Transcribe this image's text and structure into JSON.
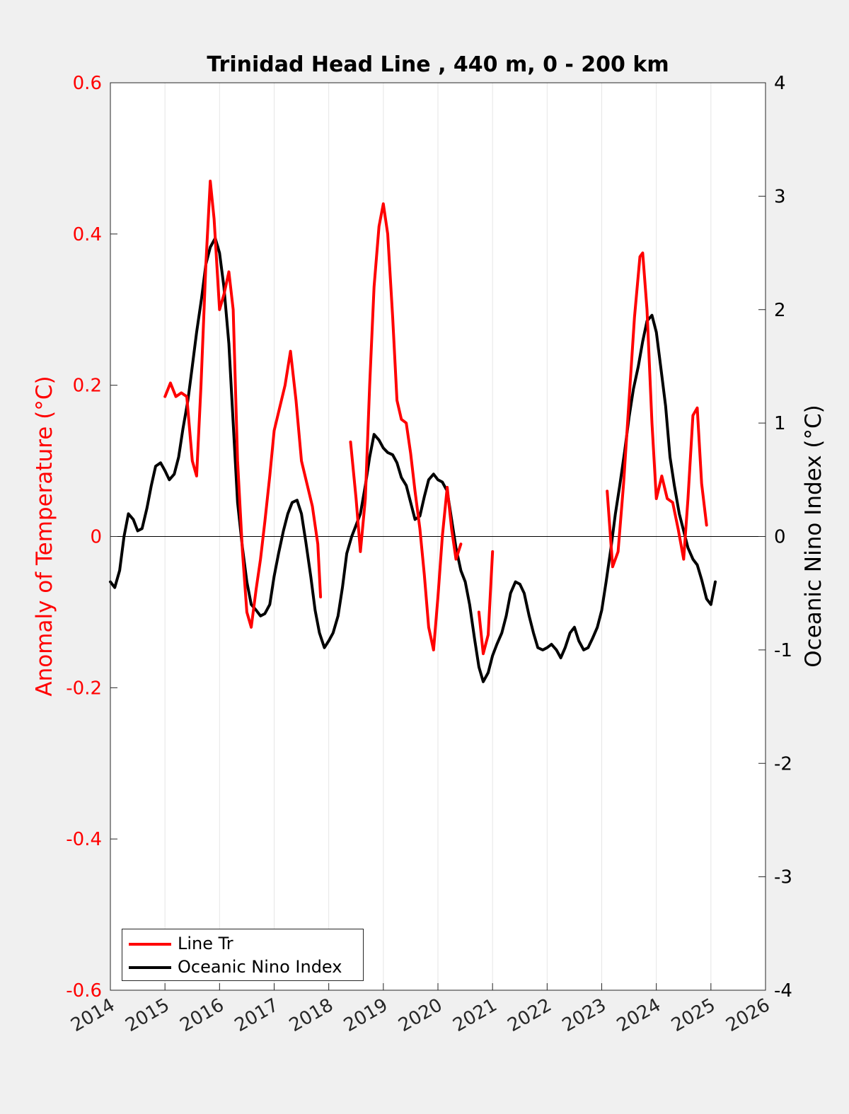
{
  "chart_data": {
    "type": "line",
    "title": "Trinidad Head Line , 440 m, 0 - 200 km",
    "ylabel_left": "Anomaly of Temperature (°C)",
    "ylabel_right": "Oceanic Nino Index (°C)",
    "xlabel": "",
    "xlim": [
      2014,
      2026
    ],
    "ylim_left": [
      -0.6,
      0.6
    ],
    "ylim_right": [
      -4,
      4
    ],
    "x_ticks": [
      "2014",
      "2015",
      "2016",
      "2017",
      "2018",
      "2019",
      "2020",
      "2021",
      "2022",
      "2023",
      "2024",
      "2025",
      "2026"
    ],
    "y_left_ticks": [
      "-0.6",
      "-0.4",
      "-0.2",
      "0",
      "0.2",
      "0.4",
      "0.6"
    ],
    "y_right_ticks": [
      "-4",
      "-3",
      "-2",
      "-1",
      "0",
      "1",
      "2",
      "3",
      "4"
    ],
    "grid": "vertical",
    "legend_position": "bottom-left",
    "colors": {
      "line_tr": "#ff0000",
      "oni": "#000000",
      "left_axis": "#ff0000",
      "right_axis": "#000000"
    },
    "series": [
      {
        "name": "Line Tr",
        "axis": "left",
        "segments": [
          [
            [
              2015.0,
              0.185
            ],
            [
              2015.1,
              0.203
            ],
            [
              2015.2,
              0.185
            ],
            [
              2015.3,
              0.19
            ],
            [
              2015.4,
              0.185
            ],
            [
              2015.5,
              0.1
            ],
            [
              2015.58,
              0.08
            ],
            [
              2015.66,
              0.2
            ],
            [
              2015.75,
              0.36
            ],
            [
              2015.83,
              0.47
            ],
            [
              2015.9,
              0.42
            ],
            [
              2016.0,
              0.3
            ],
            [
              2016.08,
              0.32
            ],
            [
              2016.17,
              0.35
            ],
            [
              2016.25,
              0.3
            ],
            [
              2016.33,
              0.1
            ],
            [
              2016.42,
              -0.02
            ],
            [
              2016.5,
              -0.1
            ],
            [
              2016.58,
              -0.12
            ],
            [
              2016.67,
              -0.07
            ],
            [
              2016.75,
              -0.03
            ],
            [
              2016.83,
              0.02
            ],
            [
              2016.92,
              0.08
            ],
            [
              2017.0,
              0.14
            ],
            [
              2017.1,
              0.17
            ],
            [
              2017.2,
              0.2
            ],
            [
              2017.3,
              0.245
            ],
            [
              2017.4,
              0.18
            ],
            [
              2017.5,
              0.1
            ],
            [
              2017.6,
              0.07
            ],
            [
              2017.7,
              0.04
            ],
            [
              2017.8,
              -0.01
            ],
            [
              2017.85,
              -0.08
            ]
          ],
          [
            [
              2018.4,
              0.125
            ],
            [
              2018.5,
              0.05
            ],
            [
              2018.58,
              -0.02
            ],
            [
              2018.67,
              0.05
            ],
            [
              2018.75,
              0.2
            ],
            [
              2018.83,
              0.33
            ],
            [
              2018.92,
              0.41
            ],
            [
              2019.0,
              0.44
            ],
            [
              2019.08,
              0.4
            ],
            [
              2019.17,
              0.29
            ],
            [
              2019.25,
              0.18
            ],
            [
              2019.33,
              0.155
            ],
            [
              2019.42,
              0.15
            ],
            [
              2019.5,
              0.11
            ],
            [
              2019.58,
              0.06
            ],
            [
              2019.67,
              0.01
            ],
            [
              2019.75,
              -0.05
            ],
            [
              2019.83,
              -0.12
            ],
            [
              2019.92,
              -0.15
            ],
            [
              2020.0,
              -0.08
            ],
            [
              2020.08,
              0.0
            ],
            [
              2020.17,
              0.065
            ],
            [
              2020.25,
              0.01
            ],
            [
              2020.33,
              -0.03
            ],
            [
              2020.42,
              -0.01
            ]
          ],
          [
            [
              2020.75,
              -0.1
            ],
            [
              2020.83,
              -0.155
            ],
            [
              2020.92,
              -0.13
            ],
            [
              2021.0,
              -0.02
            ]
          ],
          [
            [
              2023.1,
              0.06
            ],
            [
              2023.2,
              -0.04
            ],
            [
              2023.3,
              -0.02
            ],
            [
              2023.4,
              0.07
            ],
            [
              2023.5,
              0.18
            ],
            [
              2023.6,
              0.29
            ],
            [
              2023.7,
              0.37
            ],
            [
              2023.75,
              0.375
            ],
            [
              2023.83,
              0.3
            ],
            [
              2023.92,
              0.15
            ],
            [
              2024.0,
              0.05
            ],
            [
              2024.1,
              0.08
            ],
            [
              2024.2,
              0.05
            ],
            [
              2024.3,
              0.045
            ],
            [
              2024.4,
              0.01
            ],
            [
              2024.5,
              -0.03
            ],
            [
              2024.58,
              0.05
            ],
            [
              2024.67,
              0.16
            ],
            [
              2024.75,
              0.17
            ],
            [
              2024.83,
              0.07
            ],
            [
              2024.92,
              0.015
            ]
          ]
        ]
      },
      {
        "name": "Oceanic Nino Index",
        "axis": "right",
        "segments": [
          [
            [
              2014.0,
              -0.4
            ],
            [
              2014.08,
              -0.45
            ],
            [
              2014.17,
              -0.3
            ],
            [
              2014.25,
              0.0
            ],
            [
              2014.33,
              0.2
            ],
            [
              2014.42,
              0.15
            ],
            [
              2014.5,
              0.05
            ],
            [
              2014.58,
              0.07
            ],
            [
              2014.67,
              0.25
            ],
            [
              2014.75,
              0.45
            ],
            [
              2014.83,
              0.62
            ],
            [
              2014.92,
              0.65
            ],
            [
              2015.0,
              0.58
            ],
            [
              2015.08,
              0.5
            ],
            [
              2015.17,
              0.55
            ],
            [
              2015.25,
              0.7
            ],
            [
              2015.33,
              0.95
            ],
            [
              2015.42,
              1.2
            ],
            [
              2015.5,
              1.5
            ],
            [
              2015.58,
              1.8
            ],
            [
              2015.67,
              2.1
            ],
            [
              2015.75,
              2.4
            ],
            [
              2015.83,
              2.55
            ],
            [
              2015.92,
              2.63
            ],
            [
              2016.0,
              2.5
            ],
            [
              2016.08,
              2.2
            ],
            [
              2016.17,
              1.7
            ],
            [
              2016.25,
              1.0
            ],
            [
              2016.33,
              0.3
            ],
            [
              2016.42,
              -0.1
            ],
            [
              2016.5,
              -0.4
            ],
            [
              2016.58,
              -0.6
            ],
            [
              2016.67,
              -0.65
            ],
            [
              2016.75,
              -0.7
            ],
            [
              2016.83,
              -0.68
            ],
            [
              2016.92,
              -0.6
            ],
            [
              2017.0,
              -0.35
            ],
            [
              2017.08,
              -0.15
            ],
            [
              2017.17,
              0.05
            ],
            [
              2017.25,
              0.2
            ],
            [
              2017.33,
              0.3
            ],
            [
              2017.42,
              0.32
            ],
            [
              2017.5,
              0.2
            ],
            [
              2017.58,
              -0.05
            ],
            [
              2017.67,
              -0.35
            ],
            [
              2017.75,
              -0.65
            ],
            [
              2017.83,
              -0.85
            ],
            [
              2017.92,
              -0.98
            ],
            [
              2018.0,
              -0.92
            ],
            [
              2018.08,
              -0.85
            ],
            [
              2018.17,
              -0.7
            ],
            [
              2018.25,
              -0.45
            ],
            [
              2018.33,
              -0.15
            ],
            [
              2018.42,
              0.0
            ],
            [
              2018.5,
              0.1
            ],
            [
              2018.58,
              0.2
            ],
            [
              2018.67,
              0.45
            ],
            [
              2018.75,
              0.7
            ],
            [
              2018.83,
              0.9
            ],
            [
              2018.92,
              0.85
            ],
            [
              2019.0,
              0.78
            ],
            [
              2019.08,
              0.74
            ],
            [
              2019.17,
              0.72
            ],
            [
              2019.25,
              0.65
            ],
            [
              2019.33,
              0.52
            ],
            [
              2019.42,
              0.45
            ],
            [
              2019.5,
              0.3
            ],
            [
              2019.58,
              0.15
            ],
            [
              2019.67,
              0.18
            ],
            [
              2019.75,
              0.35
            ],
            [
              2019.83,
              0.5
            ],
            [
              2019.92,
              0.55
            ],
            [
              2020.0,
              0.5
            ],
            [
              2020.08,
              0.48
            ],
            [
              2020.17,
              0.4
            ],
            [
              2020.25,
              0.15
            ],
            [
              2020.33,
              -0.1
            ],
            [
              2020.42,
              -0.3
            ],
            [
              2020.5,
              -0.4
            ],
            [
              2020.58,
              -0.6
            ],
            [
              2020.67,
              -0.9
            ],
            [
              2020.75,
              -1.15
            ],
            [
              2020.83,
              -1.28
            ],
            [
              2020.92,
              -1.2
            ],
            [
              2021.0,
              -1.05
            ],
            [
              2021.08,
              -0.95
            ],
            [
              2021.17,
              -0.85
            ],
            [
              2021.25,
              -0.7
            ],
            [
              2021.33,
              -0.5
            ],
            [
              2021.42,
              -0.4
            ],
            [
              2021.5,
              -0.42
            ],
            [
              2021.58,
              -0.5
            ],
            [
              2021.67,
              -0.7
            ],
            [
              2021.75,
              -0.85
            ],
            [
              2021.83,
              -0.98
            ],
            [
              2021.92,
              -1.0
            ],
            [
              2022.0,
              -0.98
            ],
            [
              2022.08,
              -0.95
            ],
            [
              2022.17,
              -1.0
            ],
            [
              2022.25,
              -1.07
            ],
            [
              2022.33,
              -0.98
            ],
            [
              2022.42,
              -0.85
            ],
            [
              2022.5,
              -0.8
            ],
            [
              2022.58,
              -0.92
            ],
            [
              2022.67,
              -1.0
            ],
            [
              2022.75,
              -0.98
            ],
            [
              2022.83,
              -0.9
            ],
            [
              2022.92,
              -0.8
            ],
            [
              2023.0,
              -0.65
            ],
            [
              2023.08,
              -0.4
            ],
            [
              2023.17,
              -0.1
            ],
            [
              2023.25,
              0.2
            ],
            [
              2023.33,
              0.45
            ],
            [
              2023.42,
              0.75
            ],
            [
              2023.5,
              1.05
            ],
            [
              2023.58,
              1.3
            ],
            [
              2023.67,
              1.5
            ],
            [
              2023.75,
              1.72
            ],
            [
              2023.83,
              1.9
            ],
            [
              2023.92,
              1.95
            ],
            [
              2024.0,
              1.8
            ],
            [
              2024.08,
              1.5
            ],
            [
              2024.17,
              1.15
            ],
            [
              2024.25,
              0.7
            ],
            [
              2024.33,
              0.45
            ],
            [
              2024.42,
              0.2
            ],
            [
              2024.5,
              0.05
            ],
            [
              2024.58,
              -0.1
            ],
            [
              2024.67,
              -0.2
            ],
            [
              2024.75,
              -0.25
            ],
            [
              2024.83,
              -0.38
            ],
            [
              2024.92,
              -0.55
            ],
            [
              2025.0,
              -0.6
            ],
            [
              2025.08,
              -0.4
            ]
          ]
        ]
      }
    ],
    "legend": [
      "Line Tr",
      "Oceanic Nino Index"
    ]
  }
}
